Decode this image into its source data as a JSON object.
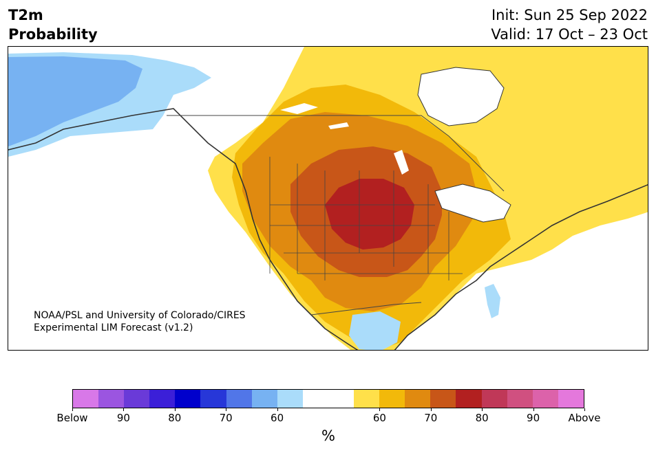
{
  "header": {
    "title_line1": "T2m",
    "title_line2": "Probability",
    "init": "Init: Sun 25 Sep 2022",
    "valid": "Valid: 17 Oct – 23 Oct"
  },
  "credit": {
    "line1": "NOAA/PSL and University of Colorado/CIRES",
    "line2": "Experimental LIM Forecast (v1.2)"
  },
  "colorbar": {
    "unit": "%",
    "colors": [
      "#d878e8",
      "#9b55e0",
      "#6a3ad8",
      "#3b1fd8",
      "#0000cc",
      "#2737d8",
      "#5176e8",
      "#77b2f2",
      "#aadcfa",
      "#ffffff",
      "#ffffff",
      "#ffe04a",
      "#f2b90a",
      "#e08a10",
      "#c85618",
      "#b22020",
      "#c03858",
      "#d05080",
      "#dc62aa",
      "#e478dc"
    ],
    "ticks": [
      "Below",
      "90",
      "80",
      "70",
      "60",
      "60",
      "70",
      "80",
      "90",
      "Above"
    ]
  },
  "map": {
    "palette": {
      "water": "#ffffff",
      "below_60": "#aadcfa",
      "below_70": "#77b2f2",
      "above_60": "#ffe04a",
      "above_70": "#f2b90a",
      "above_80": "#e08a10",
      "above_90": "#c85618",
      "above_max": "#b22020",
      "coastline": "#333333"
    }
  }
}
